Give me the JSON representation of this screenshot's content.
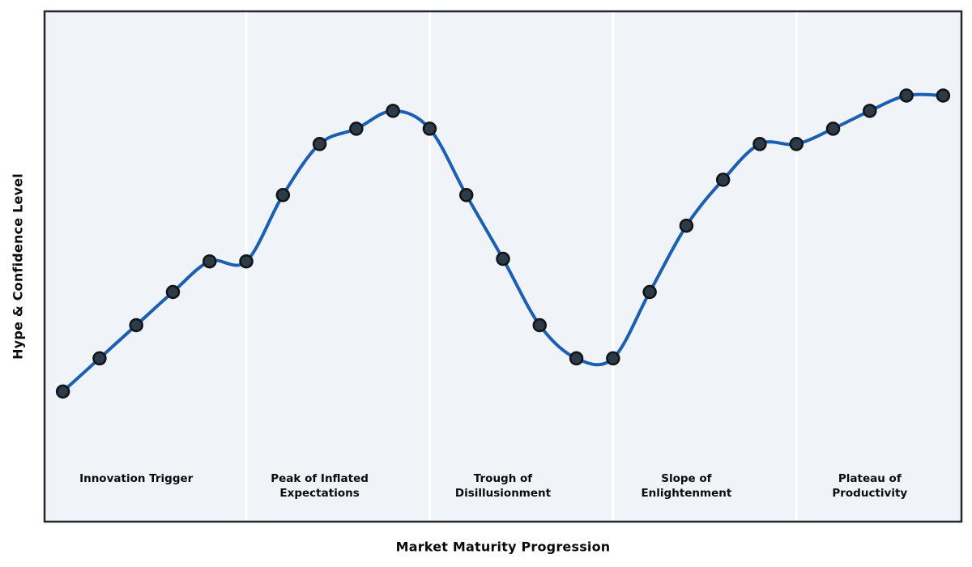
{
  "chart_data": {
    "type": "line",
    "title": "",
    "xlabel": "Market Maturity Progression",
    "ylabel": "Hype & Confidence Level",
    "x": [
      1,
      2,
      3,
      4,
      5,
      6,
      7,
      8,
      9,
      10,
      11,
      12,
      13,
      14,
      15,
      16,
      17,
      18,
      19,
      20,
      21,
      22,
      23,
      24,
      25
    ],
    "values": [
      25.5,
      32,
      38.5,
      45,
      51,
      51,
      64,
      74,
      77,
      80.5,
      77,
      64,
      51.5,
      38.5,
      32,
      32,
      45,
      58,
      67,
      74,
      74,
      77,
      80.5,
      83.5,
      83.5
    ],
    "xlim": [
      0.5,
      25.5
    ],
    "ylim": [
      0,
      100
    ],
    "grid": false,
    "legend": "none",
    "axis_ticks": "none",
    "curve_style": "smooth-spline",
    "phase_boundaries_x": [
      6,
      11,
      16,
      21
    ],
    "phases": [
      {
        "label": "Innovation Trigger",
        "lines": [
          "Innovation Trigger"
        ],
        "center_x": 3
      },
      {
        "label": "Peak of Inflated Expectations",
        "lines": [
          "Peak of Inflated",
          "Expectations"
        ],
        "center_x": 8
      },
      {
        "label": "Trough of Disillusionment",
        "lines": [
          "Trough of",
          "Disillusionment"
        ],
        "center_x": 13
      },
      {
        "label": "Slope of Enlightenment",
        "lines": [
          "Slope of",
          "Enlightenment"
        ],
        "center_x": 18
      },
      {
        "label": "Plateau of Productivity",
        "lines": [
          "Plateau of",
          "Productivity"
        ],
        "center_x": 23
      }
    ],
    "style": {
      "line_color": "#1a5fb4",
      "marker_fill": "#2d3a48",
      "marker_edge": "#101418",
      "plot_background": "#f0f4f8",
      "separator_color": "#ffffff",
      "border_color": "#24282e",
      "label_color": "#0c0c0c",
      "figure_background": "#ffffff"
    }
  }
}
